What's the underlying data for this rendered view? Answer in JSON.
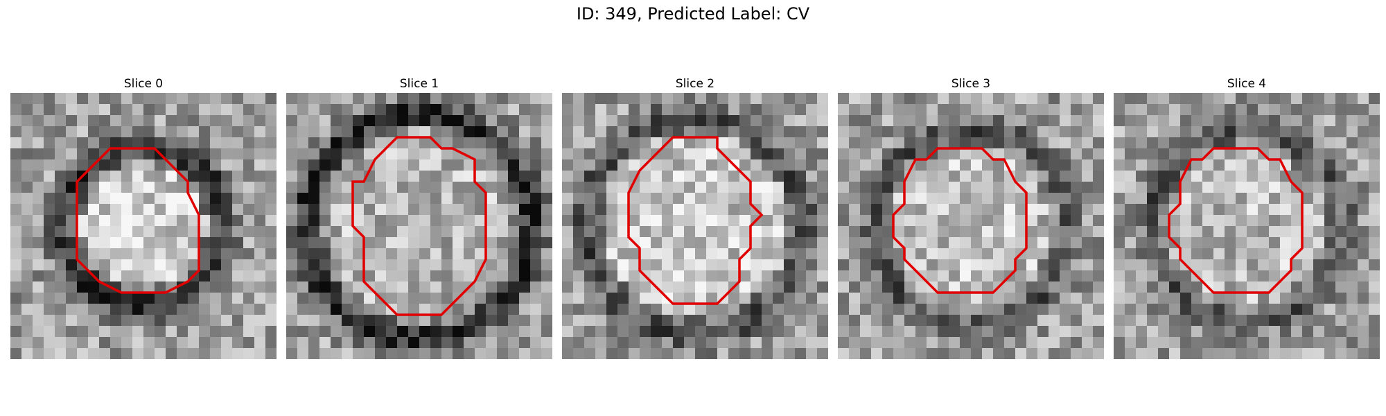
{
  "figure": {
    "title": "ID: 349, Predicted Label: CV"
  },
  "slices": [
    {
      "label": "Slice 0",
      "seed": 11,
      "ring_r": 7.2,
      "ring_dark": 0.78,
      "inner_bright": 0.55,
      "contour": [
        [
          9,
          5
        ],
        [
          6,
          8
        ],
        [
          6,
          15
        ],
        [
          8,
          17
        ],
        [
          10,
          18
        ],
        [
          14,
          18
        ],
        [
          16,
          17
        ],
        [
          17,
          16
        ],
        [
          17,
          11
        ],
        [
          16,
          9
        ],
        [
          16,
          8
        ],
        [
          14,
          6
        ],
        [
          13,
          5
        ]
      ]
    },
    {
      "label": "Slice 1",
      "seed": 23,
      "ring_r": 10.2,
      "ring_dark": 0.85,
      "inner_bright": 0.25,
      "contour": [
        [
          10,
          4
        ],
        [
          8,
          6
        ],
        [
          7,
          8
        ],
        [
          6,
          8
        ],
        [
          6,
          12
        ],
        [
          7,
          13
        ],
        [
          7,
          17
        ],
        [
          8,
          18
        ],
        [
          9,
          19
        ],
        [
          10,
          20
        ],
        [
          14,
          20
        ],
        [
          16,
          18
        ],
        [
          17,
          17
        ],
        [
          18,
          15
        ],
        [
          18,
          9
        ],
        [
          17,
          8
        ],
        [
          17,
          6
        ],
        [
          15,
          5
        ],
        [
          14,
          5
        ],
        [
          13,
          4
        ]
      ]
    },
    {
      "label": "Slice 2",
      "seed": 37,
      "ring_r": 9.8,
      "ring_dark": 0.55,
      "inner_bright": 0.45,
      "contour": [
        [
          10,
          4
        ],
        [
          8,
          6
        ],
        [
          8,
          6
        ],
        [
          7,
          7
        ],
        [
          6,
          9
        ],
        [
          6,
          10
        ],
        [
          6,
          13
        ],
        [
          7,
          14
        ],
        [
          7,
          16
        ],
        [
          9,
          18
        ],
        [
          9,
          18
        ],
        [
          10,
          19
        ],
        [
          14,
          19
        ],
        [
          15,
          18
        ],
        [
          16,
          17
        ],
        [
          16,
          15
        ],
        [
          17,
          14
        ],
        [
          17,
          12
        ],
        [
          18,
          11
        ],
        [
          17,
          10
        ],
        [
          17,
          9
        ],
        [
          17,
          8
        ],
        [
          15,
          6
        ],
        [
          14,
          5
        ],
        [
          14,
          4
        ]
      ]
    },
    {
      "label": "Slice 3",
      "seed": 41,
      "ring_r": 8.8,
      "ring_dark": 0.5,
      "inner_bright": 0.35,
      "contour": [
        [
          9,
          5
        ],
        [
          8,
          6
        ],
        [
          7,
          6
        ],
        [
          6,
          8
        ],
        [
          6,
          10
        ],
        [
          5,
          11
        ],
        [
          5,
          13
        ],
        [
          6,
          14
        ],
        [
          6,
          15
        ],
        [
          8,
          17
        ],
        [
          9,
          18
        ],
        [
          14,
          18
        ],
        [
          16,
          16
        ],
        [
          16,
          15
        ],
        [
          17,
          14
        ],
        [
          17,
          9
        ],
        [
          16,
          8
        ],
        [
          15,
          6
        ],
        [
          14,
          6
        ],
        [
          13,
          5
        ]
      ]
    },
    {
      "label": "Slice 4",
      "seed": 53,
      "ring_r": 8.6,
      "ring_dark": 0.48,
      "inner_bright": 0.3,
      "contour": [
        [
          9,
          5
        ],
        [
          8,
          6
        ],
        [
          7,
          6
        ],
        [
          6,
          8
        ],
        [
          6,
          10
        ],
        [
          5,
          11
        ],
        [
          5,
          13
        ],
        [
          6,
          14
        ],
        [
          6,
          15
        ],
        [
          8,
          17
        ],
        [
          9,
          18
        ],
        [
          14,
          18
        ],
        [
          16,
          16
        ],
        [
          16,
          15
        ],
        [
          17,
          14
        ],
        [
          17,
          9
        ],
        [
          16,
          8
        ],
        [
          15,
          6
        ],
        [
          14,
          6
        ],
        [
          13,
          5
        ]
      ]
    }
  ],
  "colors": {
    "contour": "#e00000"
  }
}
